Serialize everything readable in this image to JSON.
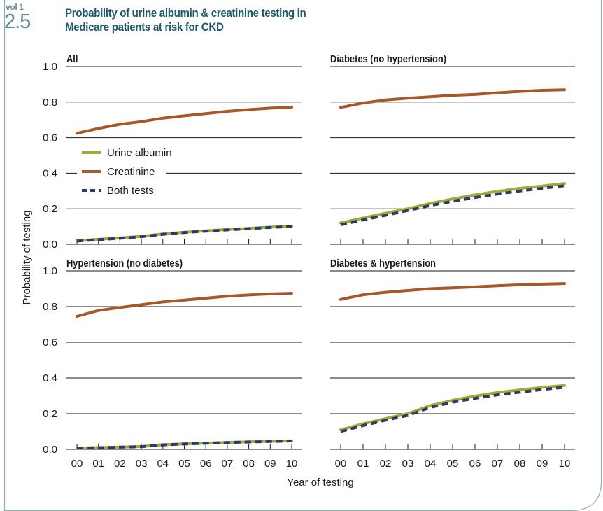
{
  "header": {
    "vol": "vol 1",
    "figure_number": "2.5",
    "title": "Probability of urine albumin & creatinine testing in Medicare patients at risk for CKD"
  },
  "colors": {
    "urine_albumin": "#a0aa35",
    "creatinine": "#a8572a",
    "both_tests": "#263a6e",
    "frame": "#8fb0b8",
    "header_text": "#1f5a6a"
  },
  "chart_data": {
    "type": "line",
    "y_label": "Probability of testing",
    "x_label": "Year of testing",
    "x": [
      "00",
      "01",
      "02",
      "03",
      "04",
      "05",
      "06",
      "07",
      "08",
      "09",
      "10"
    ],
    "y_ticks": [
      "0.0",
      "0.2",
      "0.4",
      "0.6",
      "0.8",
      "1.0"
    ],
    "ylim": [
      0,
      1.0
    ],
    "grid": "horizontal",
    "legend": {
      "placement": "inside first panel, left-middle",
      "entries": [
        "Urine albumin",
        "Creatinine",
        "Both tests"
      ]
    },
    "panels": [
      {
        "title": "All",
        "series": [
          {
            "name": "Urine albumin",
            "style": "solid",
            "values": [
              0.02,
              0.028,
              0.036,
              0.045,
              0.058,
              0.068,
              0.076,
              0.083,
              0.09,
              0.097,
              0.102
            ]
          },
          {
            "name": "Creatinine",
            "style": "solid",
            "values": [
              0.625,
              0.652,
              0.675,
              0.69,
              0.71,
              0.723,
              0.735,
              0.748,
              0.758,
              0.766,
              0.771
            ]
          },
          {
            "name": "Both tests",
            "style": "dashed",
            "values": [
              0.018,
              0.026,
              0.034,
              0.043,
              0.056,
              0.066,
              0.074,
              0.081,
              0.088,
              0.095,
              0.1
            ]
          }
        ]
      },
      {
        "title": "Diabetes (no hypertension)",
        "series": [
          {
            "name": "Urine albumin",
            "style": "solid",
            "values": [
              0.12,
              0.148,
              0.175,
              0.2,
              0.23,
              0.255,
              0.278,
              0.298,
              0.315,
              0.328,
              0.342
            ]
          },
          {
            "name": "Creatinine",
            "style": "solid",
            "values": [
              0.77,
              0.795,
              0.812,
              0.822,
              0.83,
              0.838,
              0.843,
              0.852,
              0.86,
              0.866,
              0.869
            ]
          },
          {
            "name": "Both tests",
            "style": "dashed",
            "values": [
              0.11,
              0.137,
              0.163,
              0.19,
              0.218,
              0.242,
              0.263,
              0.283,
              0.3,
              0.315,
              0.33
            ]
          }
        ]
      },
      {
        "title": "Hypertension (no diabetes)",
        "series": [
          {
            "name": "Urine albumin",
            "style": "solid",
            "values": [
              0.007,
              0.01,
              0.013,
              0.016,
              0.026,
              0.031,
              0.035,
              0.039,
              0.042,
              0.045,
              0.048
            ]
          },
          {
            "name": "Creatinine",
            "style": "solid",
            "values": [
              0.745,
              0.778,
              0.795,
              0.81,
              0.826,
              0.836,
              0.847,
              0.858,
              0.865,
              0.871,
              0.874
            ]
          },
          {
            "name": "Both tests",
            "style": "dashed",
            "values": [
              0.006,
              0.009,
              0.012,
              0.015,
              0.025,
              0.03,
              0.034,
              0.038,
              0.041,
              0.044,
              0.047
            ]
          }
        ]
      },
      {
        "title": "Diabetes & hypertension",
        "series": [
          {
            "name": "Urine albumin",
            "style": "solid",
            "values": [
              0.11,
              0.143,
              0.172,
              0.2,
              0.245,
              0.275,
              0.298,
              0.318,
              0.333,
              0.347,
              0.358
            ]
          },
          {
            "name": "Creatinine",
            "style": "solid",
            "values": [
              0.84,
              0.866,
              0.88,
              0.89,
              0.9,
              0.905,
              0.91,
              0.917,
              0.922,
              0.926,
              0.929
            ]
          },
          {
            "name": "Both tests",
            "style": "dashed",
            "values": [
              0.1,
              0.133,
              0.163,
              0.19,
              0.235,
              0.264,
              0.286,
              0.305,
              0.32,
              0.335,
              0.348
            ]
          }
        ]
      }
    ]
  }
}
